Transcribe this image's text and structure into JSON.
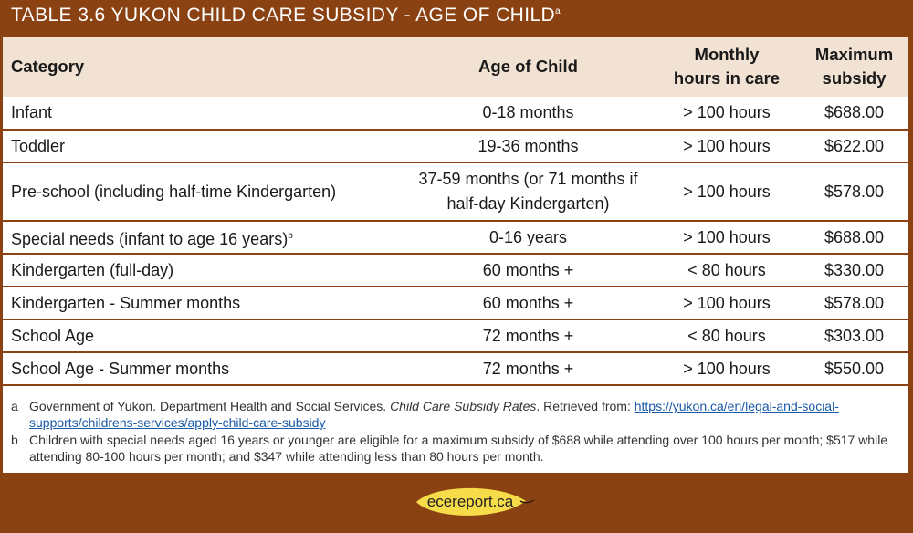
{
  "title": {
    "text": "TABLE 3.6 YUKON CHILD CARE SUBSIDY - AGE OF CHILD",
    "note_ref": "a"
  },
  "table": {
    "headers": {
      "category": "Category",
      "age": "Age of Child",
      "hours_line1": "Monthly",
      "hours_line2": "hours in care",
      "subsidy_line1": "Maximum",
      "subsidy_line2": "subsidy"
    },
    "rows": [
      {
        "category": "Infant",
        "age": "0-18 months",
        "hours": "> 100 hours",
        "subsidy": "$688.00"
      },
      {
        "category": "Toddler",
        "age": "19-36 months",
        "hours": "> 100 hours",
        "subsidy": "$622.00"
      },
      {
        "category": "Pre-school (including half-time Kindergarten)",
        "age_line1": "37-59 months (or 71 months if",
        "age_line2": "half-day Kindergarten)",
        "hours": "> 100 hours",
        "subsidy": "$578.00"
      },
      {
        "category": "Special needs (infant to age 16 years)",
        "note_ref": "b",
        "age": "0-16 years",
        "hours": "> 100 hours",
        "subsidy": "$688.00"
      },
      {
        "category": "Kindergarten (full-day)",
        "age": "60 months +",
        "hours": "< 80 hours",
        "subsidy": "$330.00"
      },
      {
        "category": "Kindergarten - Summer months",
        "age": "60 months +",
        "hours": "> 100 hours",
        "subsidy": "$578.00"
      },
      {
        "category": "School Age",
        "age": "72 months +",
        "hours": "< 80 hours",
        "subsidy": "$303.00"
      },
      {
        "category": "School Age - Summer months",
        "age": "72 months +",
        "hours": "> 100 hours",
        "subsidy": "$550.00"
      }
    ]
  },
  "notes": {
    "a": {
      "marker": "a",
      "text_before": "Government of Yukon. Department Health and Social Services. ",
      "italic": "Child Care Subsidy Rates",
      "text_after": ". Retrieved from: ",
      "link": "https://yukon.ca/en/legal-and-social-supports/childrens-services/apply-child-care-subsidy"
    },
    "b": {
      "marker": "b",
      "text": "Children with special needs aged 16 years or younger are eligible for a maximum subsidy of $688 while attending over 100 hours per month; $517 while attending 80-100 hours per month; and $347 while attending less than 80 hours per month."
    }
  },
  "footer": {
    "brand": "ecereport.ca",
    "leaf_color": "#f7dc4a"
  }
}
